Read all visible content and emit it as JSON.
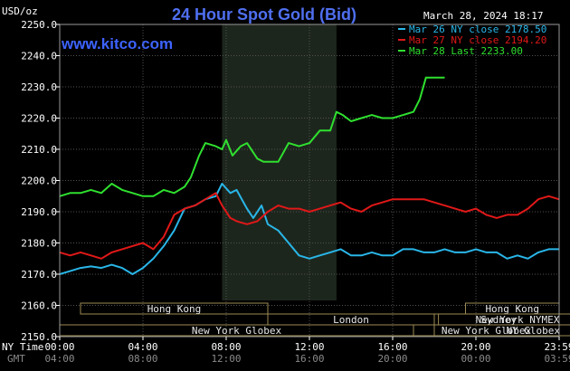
{
  "header": {
    "title": "24 Hour Spot Gold (Bid)",
    "unit": "USD/oz",
    "timestamp": "March 28, 2024 18:17",
    "website": "www.kitco.com"
  },
  "footer": {
    "ny_time_label": "NY Time",
    "gmt_label": "GMT"
  },
  "colors": {
    "background": "#000000",
    "plot_bg": "#000000",
    "highlight_bg": "#1d261d",
    "grid": "#505050",
    "frame": "#9a9a9a",
    "session_box": "#9b8a52",
    "series_mar26": "#29b6e8",
    "series_mar27": "#e01818",
    "series_mar28": "#2fe02f"
  },
  "sessions": [
    {
      "label": "Hong Kong",
      "start": 1,
      "end": 10
    },
    {
      "label": "London",
      "start": 10,
      "end": 18
    },
    {
      "label": "New York NYMEX",
      "start": 18,
      "end": 26
    },
    {
      "label": "New York Globex",
      "start": 0,
      "end": 17
    },
    {
      "label": "NY Globex",
      "start": 18,
      "end": 27.5
    },
    {
      "label": "Hong Kong",
      "start": 19.5,
      "end": 24
    },
    {
      "label": "Sydney",
      "start": 18.2,
      "end": 24
    },
    {
      "label": "New York Globex",
      "start": 17,
      "end": 24
    }
  ],
  "chart_data": {
    "type": "line",
    "title": "24 Hour Spot Gold (Bid)",
    "ylabel": "USD/oz",
    "xlim": [
      0,
      24
    ],
    "ylim": [
      2150,
      2250
    ],
    "y_ticks": [
      "2150.0",
      "2160.0",
      "2170.0",
      "2180.0",
      "2190.0",
      "2200.0",
      "2210.0",
      "2220.0",
      "2230.0",
      "2240.0",
      "2250.0"
    ],
    "x_ticks_ny": [
      "00:00",
      "04:00",
      "08:00",
      "12:00",
      "16:00",
      "20:00",
      "23:59"
    ],
    "x_ticks_gmt": [
      "04:00",
      "08:00",
      "12:00",
      "16:00",
      "20:00",
      "00:00",
      "03:59"
    ],
    "highlight_range": [
      7.8,
      13.3
    ],
    "grid": true,
    "legend_position": "top-right",
    "series": [
      {
        "name": "Mar 26 NY close 2178.50",
        "key": "mar26",
        "points": [
          [
            0,
            2170
          ],
          [
            0.5,
            2171
          ],
          [
            1,
            2172
          ],
          [
            1.5,
            2172.5
          ],
          [
            2,
            2172
          ],
          [
            2.5,
            2173
          ],
          [
            3,
            2172
          ],
          [
            3.5,
            2170
          ],
          [
            4,
            2172
          ],
          [
            4.5,
            2175
          ],
          [
            5,
            2179
          ],
          [
            5.5,
            2184
          ],
          [
            6,
            2191
          ],
          [
            6.5,
            2192
          ],
          [
            7,
            2194
          ],
          [
            7.5,
            2195
          ],
          [
            7.8,
            2199
          ],
          [
            8.2,
            2196
          ],
          [
            8.5,
            2197
          ],
          [
            9,
            2191
          ],
          [
            9.3,
            2188
          ],
          [
            9.7,
            2192
          ],
          [
            10,
            2186
          ],
          [
            10.5,
            2184
          ],
          [
            11,
            2180
          ],
          [
            11.5,
            2176
          ],
          [
            12,
            2175
          ],
          [
            12.5,
            2176
          ],
          [
            13,
            2177
          ],
          [
            13.5,
            2178
          ],
          [
            14,
            2176
          ],
          [
            14.5,
            2176
          ],
          [
            15,
            2177
          ],
          [
            15.5,
            2176
          ],
          [
            16,
            2176
          ],
          [
            16.5,
            2178
          ],
          [
            17,
            2178
          ],
          [
            17.5,
            2177
          ],
          [
            18,
            2177
          ],
          [
            18.5,
            2178
          ],
          [
            19,
            2177
          ],
          [
            19.5,
            2177
          ],
          [
            20,
            2178
          ],
          [
            20.5,
            2177
          ],
          [
            21,
            2177
          ],
          [
            21.5,
            2175
          ],
          [
            22,
            2176
          ],
          [
            22.5,
            2175
          ],
          [
            23,
            2177
          ],
          [
            23.5,
            2178
          ],
          [
            23.99,
            2178
          ]
        ]
      },
      {
        "name": "Mar 27 NY close 2194.20",
        "key": "mar27",
        "points": [
          [
            0,
            2177
          ],
          [
            0.5,
            2176
          ],
          [
            1,
            2177
          ],
          [
            1.5,
            2176
          ],
          [
            2,
            2175
          ],
          [
            2.5,
            2177
          ],
          [
            3,
            2178
          ],
          [
            3.5,
            2179
          ],
          [
            4,
            2180
          ],
          [
            4.5,
            2178
          ],
          [
            5,
            2182
          ],
          [
            5.5,
            2189
          ],
          [
            6,
            2191
          ],
          [
            6.5,
            2192
          ],
          [
            7,
            2194
          ],
          [
            7.5,
            2196
          ],
          [
            7.8,
            2192
          ],
          [
            8.2,
            2188
          ],
          [
            8.5,
            2187
          ],
          [
            9,
            2186
          ],
          [
            9.5,
            2187
          ],
          [
            10,
            2190
          ],
          [
            10.5,
            2192
          ],
          [
            11,
            2191
          ],
          [
            11.5,
            2191
          ],
          [
            12,
            2190
          ],
          [
            12.5,
            2191
          ],
          [
            13,
            2192
          ],
          [
            13.5,
            2193
          ],
          [
            14,
            2191
          ],
          [
            14.5,
            2190
          ],
          [
            15,
            2192
          ],
          [
            15.5,
            2193
          ],
          [
            16,
            2194
          ],
          [
            16.5,
            2194
          ],
          [
            17,
            2194
          ],
          [
            17.5,
            2194
          ],
          [
            18,
            2193
          ],
          [
            18.5,
            2192
          ],
          [
            19,
            2191
          ],
          [
            19.5,
            2190
          ],
          [
            20,
            2191
          ],
          [
            20.5,
            2189
          ],
          [
            21,
            2188
          ],
          [
            21.5,
            2189
          ],
          [
            22,
            2189
          ],
          [
            22.5,
            2191
          ],
          [
            23,
            2194
          ],
          [
            23.5,
            2195
          ],
          [
            23.99,
            2194
          ]
        ]
      },
      {
        "name": "Mar 28 Last 2233.00",
        "key": "mar28",
        "points": [
          [
            0,
            2195
          ],
          [
            0.5,
            2196
          ],
          [
            1,
            2196
          ],
          [
            1.5,
            2197
          ],
          [
            2,
            2196
          ],
          [
            2.5,
            2199
          ],
          [
            3,
            2197
          ],
          [
            3.5,
            2196
          ],
          [
            4,
            2195
          ],
          [
            4.5,
            2195
          ],
          [
            5,
            2197
          ],
          [
            5.5,
            2196
          ],
          [
            6,
            2198
          ],
          [
            6.3,
            2201
          ],
          [
            6.7,
            2208
          ],
          [
            7,
            2212
          ],
          [
            7.5,
            2211
          ],
          [
            7.8,
            2210
          ],
          [
            8,
            2213
          ],
          [
            8.3,
            2208
          ],
          [
            8.7,
            2211
          ],
          [
            9,
            2212
          ],
          [
            9.5,
            2207
          ],
          [
            9.8,
            2206
          ],
          [
            10,
            2206
          ],
          [
            10.5,
            2206
          ],
          [
            11,
            2212
          ],
          [
            11.5,
            2211
          ],
          [
            12,
            2212
          ],
          [
            12.5,
            2216
          ],
          [
            13,
            2216
          ],
          [
            13.3,
            2222
          ],
          [
            13.6,
            2221
          ],
          [
            14,
            2219
          ],
          [
            14.5,
            2220
          ],
          [
            15,
            2221
          ],
          [
            15.5,
            2220
          ],
          [
            16,
            2220
          ],
          [
            16.5,
            2221
          ],
          [
            17,
            2222
          ],
          [
            17.3,
            2226
          ],
          [
            17.6,
            2233
          ],
          [
            18,
            2233
          ],
          [
            18.5,
            2233
          ]
        ]
      }
    ]
  }
}
